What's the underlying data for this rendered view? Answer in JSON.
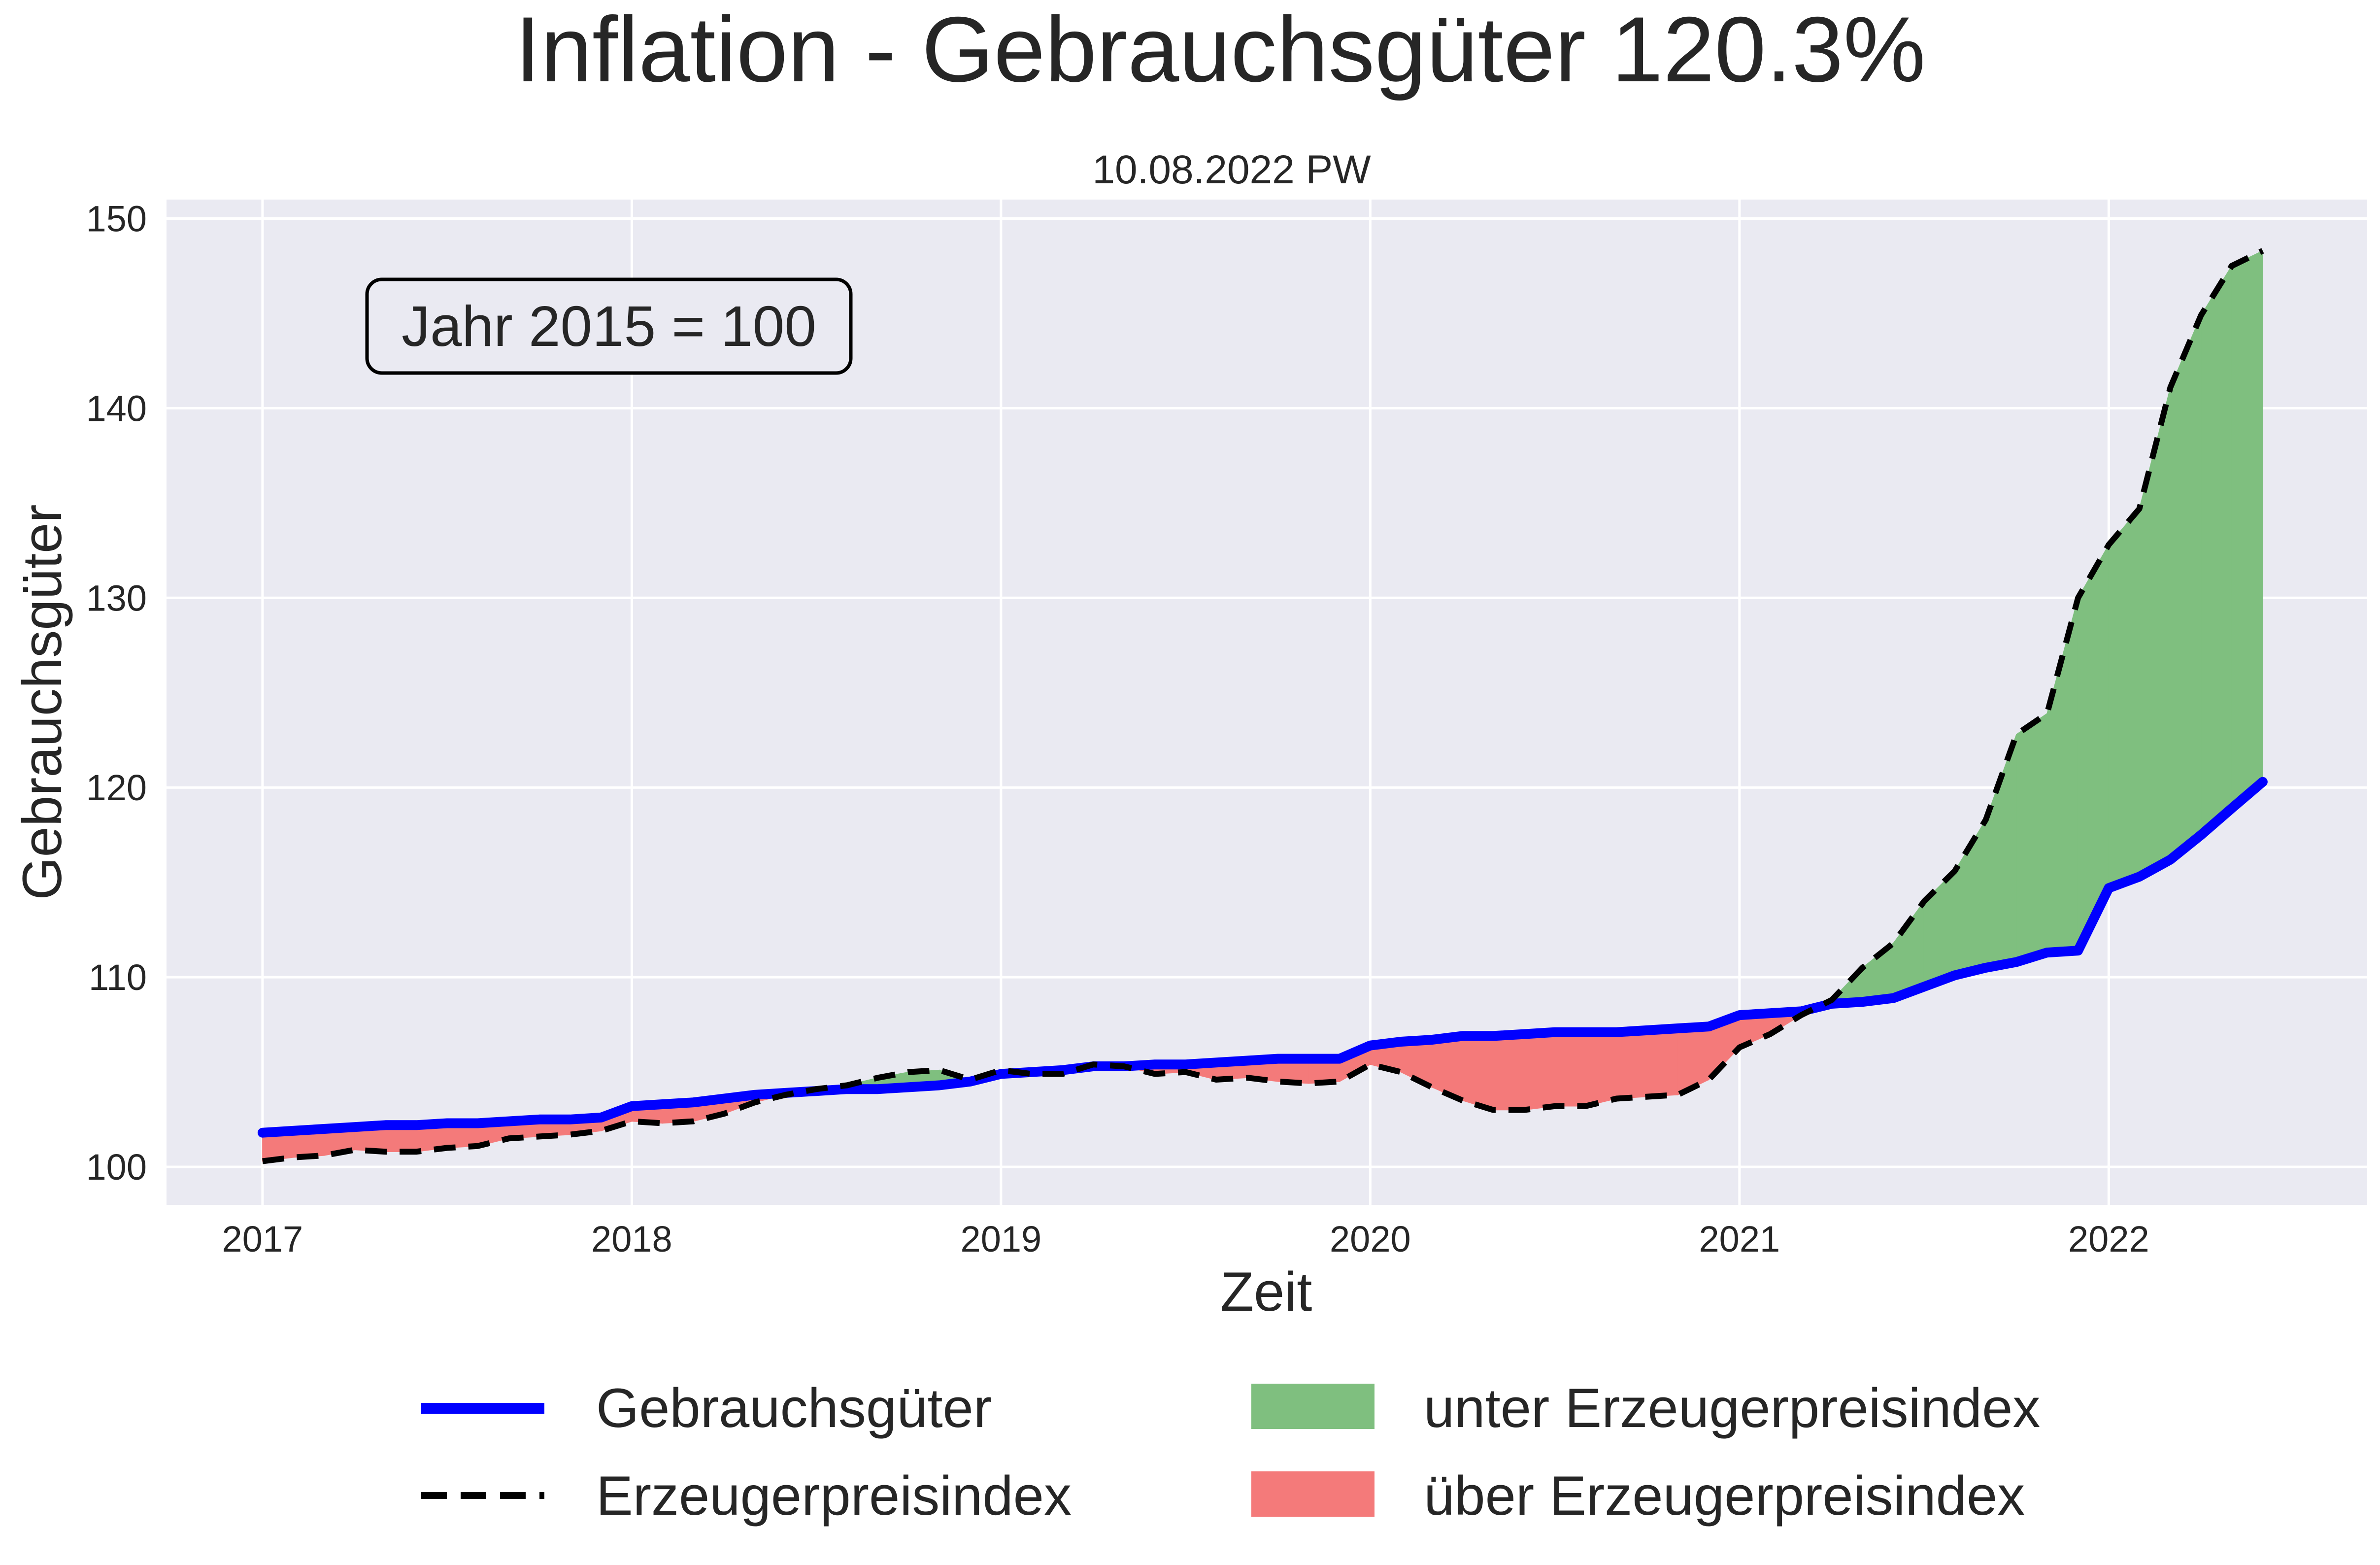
{
  "chart_data": {
    "type": "line",
    "title": "Inflation - Gebrauchsgüter 120.3%",
    "subtitle": "10.08.2022 PW",
    "xlabel": "Zeit",
    "ylabel": "Gebrauchsgüter",
    "annotation": "Jahr 2015 = 100",
    "xlim": [
      2016.74,
      2022.7
    ],
    "ylim": [
      98.0,
      151.0
    ],
    "x_ticks": [
      2017,
      2018,
      2019,
      2020,
      2021,
      2022
    ],
    "x_tick_labels": [
      "2017",
      "2018",
      "2019",
      "2020",
      "2021",
      "2022"
    ],
    "y_ticks": [
      100,
      110,
      120,
      130,
      140,
      150
    ],
    "y_tick_labels": [
      "100",
      "110",
      "120",
      "130",
      "140",
      "150"
    ],
    "grid": true,
    "legend_position": "bottom",
    "x": [
      2017.0,
      2017.083,
      2017.167,
      2017.25,
      2017.333,
      2017.417,
      2017.5,
      2017.583,
      2017.667,
      2017.75,
      2017.833,
      2017.917,
      2018.0,
      2018.083,
      2018.167,
      2018.25,
      2018.333,
      2018.417,
      2018.5,
      2018.583,
      2018.667,
      2018.75,
      2018.833,
      2018.917,
      2019.0,
      2019.083,
      2019.167,
      2019.25,
      2019.333,
      2019.417,
      2019.5,
      2019.583,
      2019.667,
      2019.75,
      2019.833,
      2019.917,
      2020.0,
      2020.083,
      2020.167,
      2020.25,
      2020.333,
      2020.417,
      2020.5,
      2020.583,
      2020.667,
      2020.75,
      2020.833,
      2020.917,
      2021.0,
      2021.083,
      2021.167,
      2021.25,
      2021.333,
      2021.417,
      2021.5,
      2021.583,
      2021.667,
      2021.75,
      2021.833,
      2021.917,
      2022.0,
      2022.083,
      2022.167,
      2022.25,
      2022.333,
      2022.417
    ],
    "series": [
      {
        "name": "Gebrauchsgüter",
        "color": "#0000ff",
        "style": "solid",
        "values": [
          101.8,
          101.9,
          102.0,
          102.1,
          102.2,
          102.2,
          102.3,
          102.3,
          102.4,
          102.5,
          102.5,
          102.6,
          103.2,
          103.3,
          103.4,
          103.6,
          103.8,
          103.9,
          104.0,
          104.1,
          104.1,
          104.2,
          104.3,
          104.5,
          104.9,
          105.0,
          105.1,
          105.3,
          105.3,
          105.4,
          105.4,
          105.5,
          105.6,
          105.7,
          105.7,
          105.7,
          106.4,
          106.6,
          106.7,
          106.9,
          106.9,
          107.0,
          107.1,
          107.1,
          107.1,
          107.2,
          107.3,
          107.4,
          108.0,
          108.1,
          108.2,
          108.6,
          108.7,
          108.9,
          109.5,
          110.1,
          110.5,
          110.8,
          111.3,
          111.4,
          114.7,
          115.3,
          116.2,
          117.5,
          118.9,
          120.3
        ]
      },
      {
        "name": "Erzeugerpreisindex",
        "color": "#000000",
        "style": "dashed",
        "values": [
          100.3,
          100.5,
          100.6,
          100.9,
          100.8,
          100.8,
          101.0,
          101.1,
          101.5,
          101.6,
          101.7,
          101.9,
          102.4,
          102.3,
          102.4,
          102.8,
          103.4,
          103.8,
          104.1,
          104.3,
          104.7,
          105.0,
          105.1,
          104.6,
          105.1,
          104.9,
          104.9,
          105.4,
          105.3,
          104.9,
          105.0,
          104.6,
          104.7,
          104.5,
          104.4,
          104.5,
          105.4,
          105.0,
          104.2,
          103.5,
          103.0,
          103.0,
          103.2,
          103.2,
          103.6,
          103.7,
          103.8,
          104.6,
          106.3,
          107.0,
          108.0,
          108.8,
          110.5,
          111.8,
          114.0,
          115.6,
          118.3,
          122.8,
          123.9,
          130.0,
          132.8,
          134.7,
          141.1,
          144.9,
          147.5,
          148.3
        ]
      }
    ],
    "fills": [
      {
        "name": "unter Erzeugerpreisindex",
        "color": "#7fbf7f",
        "condition": "Erzeugerpreisindex > Gebrauchsgüter"
      },
      {
        "name": "über Erzeugerpreisindex",
        "color": "#f47a7a",
        "condition": "Gebrauchsgüter > Erzeugerpreisindex"
      }
    ]
  }
}
